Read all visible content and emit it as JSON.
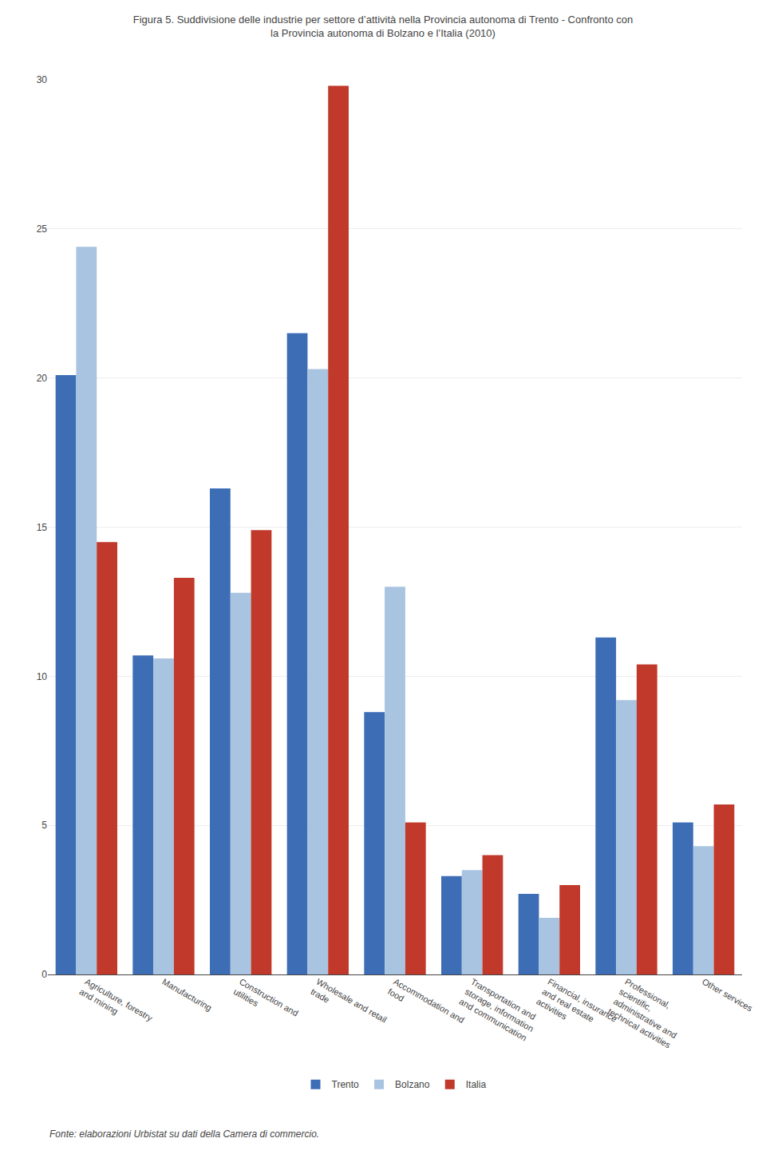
{
  "chart_data": {
    "type": "bar",
    "title": "Figura 5. Suddivisione delle industrie per settore d’attività nella Provincia autonoma di Trento - Confronto con\nla Provincia autonoma di Bolzano e l’Italia (2010)",
    "categories": [
      "Agriculture, forestry\nand mining",
      "Manufacturing",
      "Construction and\nutilities",
      "Wholesale and retail\ntrade",
      "Accommodation and\nfood",
      "Transportation and\nstorage, information\nand communication",
      "Financial, insurance\nand real estate\nactivities",
      "Professional,\nscientific,\nadministrative and\ntechnical activities",
      "Other services"
    ],
    "series": [
      {
        "name": "Trento",
        "color": "#3D6DB5",
        "values": [
          20.1,
          10.7,
          16.3,
          21.5,
          8.8,
          3.3,
          2.7,
          11.3,
          5.1
        ]
      },
      {
        "name": "Bolzano",
        "color": "#A8C4E0",
        "values": [
          24.4,
          10.6,
          12.8,
          20.3,
          13.0,
          3.5,
          1.9,
          9.2,
          4.3
        ]
      },
      {
        "name": "Italia",
        "color": "#C0392B",
        "values": [
          14.5,
          13.3,
          14.9,
          29.8,
          5.1,
          4.0,
          3.0,
          10.4,
          5.7
        ]
      }
    ],
    "ylim": [
      0,
      30
    ],
    "yticks": [
      0,
      5,
      10,
      15,
      20,
      25,
      30
    ],
    "grid": true,
    "legend": "bottom",
    "annotations": [
      "Fonte: elaborazioni Urbistat su dati della Camera di commercio."
    ]
  }
}
